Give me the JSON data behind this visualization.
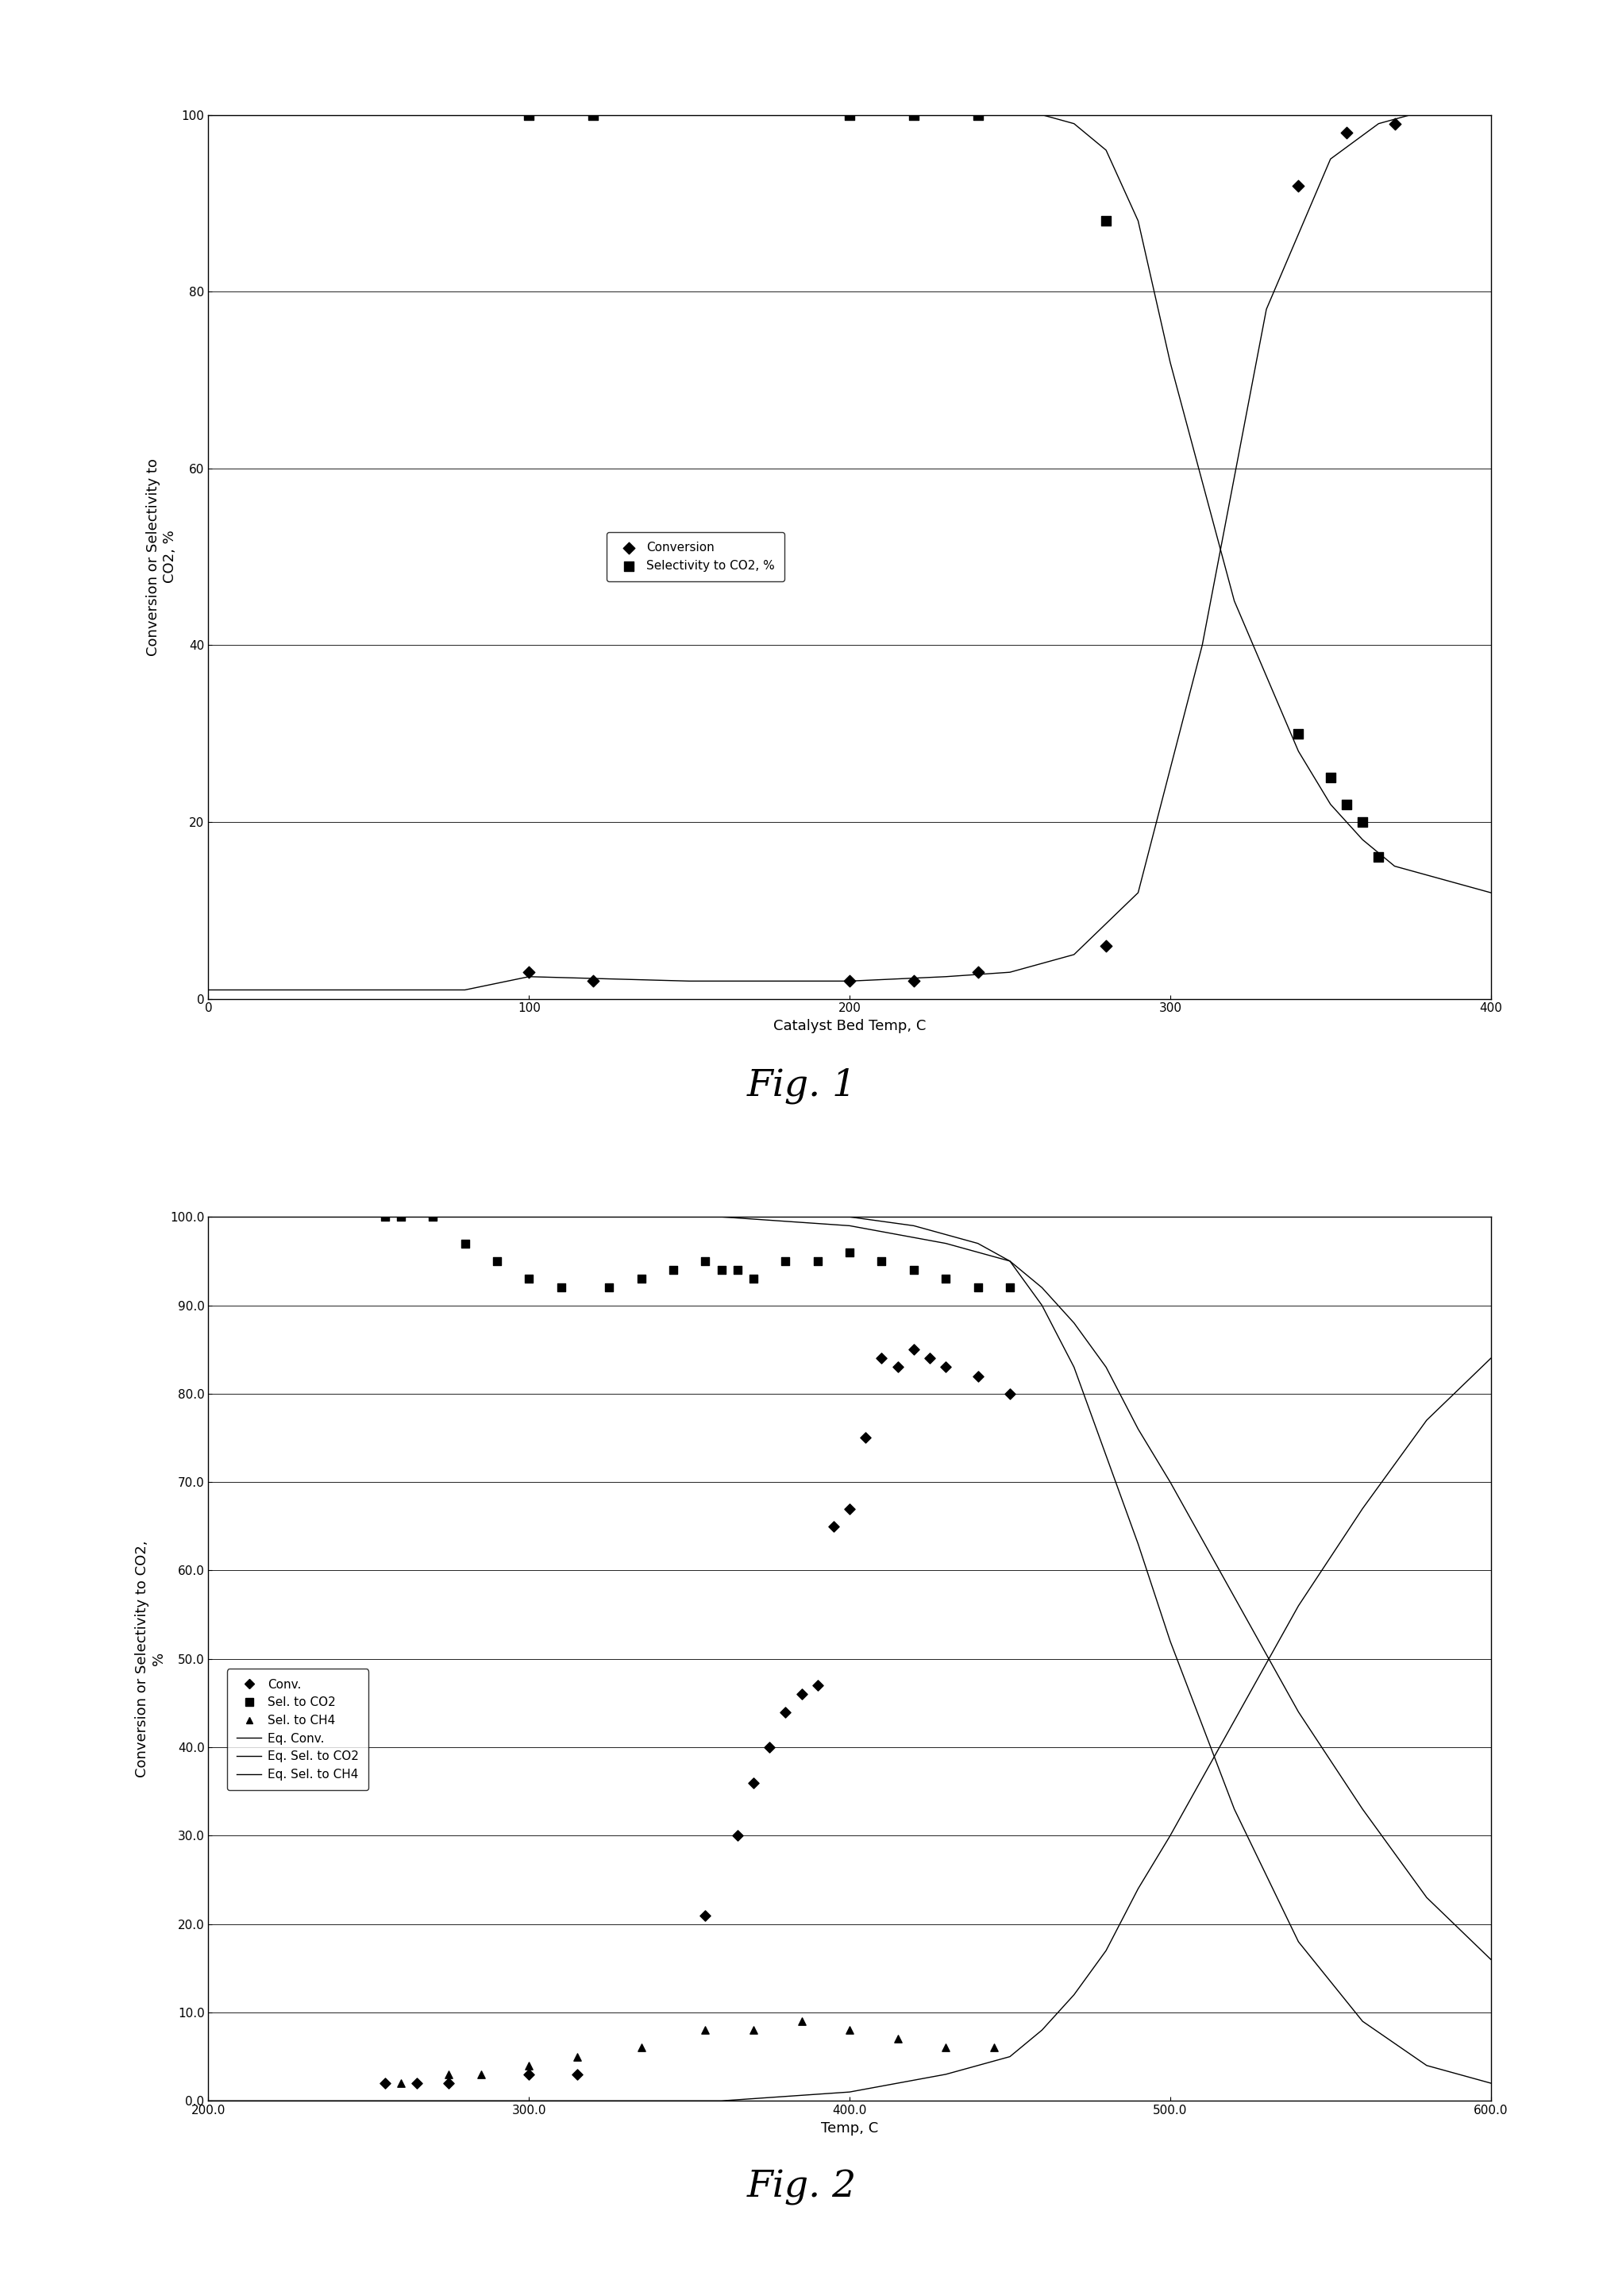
{
  "fig1": {
    "title": "Fig. 1",
    "xlabel": "Catalyst Bed Temp, C",
    "ylabel": "Conversion or Selectivity to\nCO2, %",
    "xlim": [
      0,
      400
    ],
    "ylim": [
      0,
      100
    ],
    "xticks": [
      0,
      100,
      200,
      300,
      400
    ],
    "yticks": [
      0,
      20,
      40,
      60,
      80,
      100
    ],
    "conversion_x": [
      100,
      120,
      200,
      220,
      240,
      280,
      340,
      355,
      370
    ],
    "conversion_y": [
      3,
      2,
      2,
      2,
      3,
      6,
      92,
      98,
      99
    ],
    "selectivity_x": [
      100,
      120,
      200,
      220,
      240,
      280,
      340,
      350,
      355,
      360,
      365
    ],
    "selectivity_y": [
      100,
      100,
      100,
      100,
      100,
      88,
      30,
      25,
      22,
      20,
      16
    ],
    "conv_curve_x": [
      0,
      80,
      100,
      150,
      200,
      230,
      250,
      270,
      290,
      310,
      330,
      350,
      365,
      375,
      400
    ],
    "conv_curve_y": [
      1,
      1,
      2.5,
      2,
      2,
      2.5,
      3,
      5,
      12,
      40,
      78,
      95,
      99,
      100,
      100
    ],
    "sel_curve_x": [
      0,
      80,
      100,
      150,
      200,
      240,
      260,
      270,
      280,
      290,
      300,
      320,
      340,
      350,
      360,
      370,
      400
    ],
    "sel_curve_y": [
      100,
      100,
      100,
      100,
      100,
      100,
      100,
      99,
      96,
      88,
      72,
      45,
      28,
      22,
      18,
      15,
      12
    ],
    "legend_labels": [
      "Conversion",
      "Selectivity to CO2, %"
    ]
  },
  "fig2": {
    "title": "Fig. 2",
    "xlabel": "Temp, C",
    "ylabel": "Conversion or Selectivity to CO2,\n%",
    "xlim": [
      200,
      600
    ],
    "ylim": [
      0,
      100
    ],
    "xticks": [
      200.0,
      300.0,
      400.0,
      500.0,
      600.0
    ],
    "yticks": [
      0.0,
      10.0,
      20.0,
      30.0,
      40.0,
      50.0,
      60.0,
      70.0,
      80.0,
      90.0,
      100.0
    ],
    "conv_pts_x": [
      255,
      265,
      275,
      300,
      315,
      355,
      365,
      370,
      375,
      380,
      385,
      390,
      395,
      400,
      405,
      410,
      415,
      420,
      425,
      430,
      440,
      450
    ],
    "conv_pts_y": [
      2,
      2,
      2,
      3,
      3,
      21,
      30,
      36,
      40,
      44,
      46,
      47,
      65,
      67,
      75,
      84,
      83,
      85,
      84,
      83,
      82,
      80
    ],
    "sel_co2_pts_x": [
      255,
      260,
      270,
      280,
      290,
      300,
      310,
      325,
      335,
      345,
      355,
      360,
      365,
      370,
      380,
      390,
      400,
      410,
      420,
      430,
      440,
      450
    ],
    "sel_co2_pts_y": [
      100,
      100,
      100,
      97,
      95,
      93,
      92,
      92,
      93,
      94,
      95,
      94,
      94,
      93,
      95,
      95,
      96,
      95,
      94,
      93,
      92,
      92
    ],
    "sel_ch4_pts_x": [
      260,
      275,
      285,
      300,
      315,
      335,
      355,
      370,
      385,
      400,
      415,
      430,
      445
    ],
    "sel_ch4_pts_y": [
      2,
      3,
      3,
      4,
      5,
      6,
      8,
      8,
      9,
      8,
      7,
      6,
      6
    ],
    "eq_conv_x": [
      200,
      280,
      320,
      360,
      400,
      420,
      440,
      450,
      460,
      470,
      480,
      490,
      500,
      520,
      540,
      560,
      580,
      600
    ],
    "eq_conv_y": [
      100,
      100,
      100,
      100,
      100,
      99,
      97,
      95,
      90,
      83,
      73,
      63,
      52,
      33,
      18,
      9,
      4,
      2
    ],
    "eq_sel_co2_x": [
      200,
      300,
      360,
      400,
      430,
      450,
      460,
      470,
      480,
      490,
      500,
      520,
      540,
      560,
      580,
      600
    ],
    "eq_sel_co2_y": [
      100,
      100,
      100,
      99,
      97,
      95,
      92,
      88,
      83,
      76,
      70,
      57,
      44,
      33,
      23,
      16
    ],
    "eq_sel_ch4_x": [
      200,
      300,
      360,
      400,
      430,
      450,
      460,
      470,
      480,
      490,
      500,
      520,
      540,
      560,
      580,
      600
    ],
    "eq_sel_ch4_y": [
      0,
      0,
      0,
      1,
      3,
      5,
      8,
      12,
      17,
      24,
      30,
      43,
      56,
      67,
      77,
      84
    ],
    "legend_labels": [
      "Conv.",
      "Sel. to CO2",
      "Sel. to CH4",
      "Eq. Conv.",
      "Eq. Sel. to CO2",
      "Eq. Sel. to CH4"
    ]
  },
  "background_color": "#ffffff",
  "fig_title_fontsize": 34,
  "axis_label_fontsize": 13,
  "tick_fontsize": 11,
  "legend_fontsize": 11
}
